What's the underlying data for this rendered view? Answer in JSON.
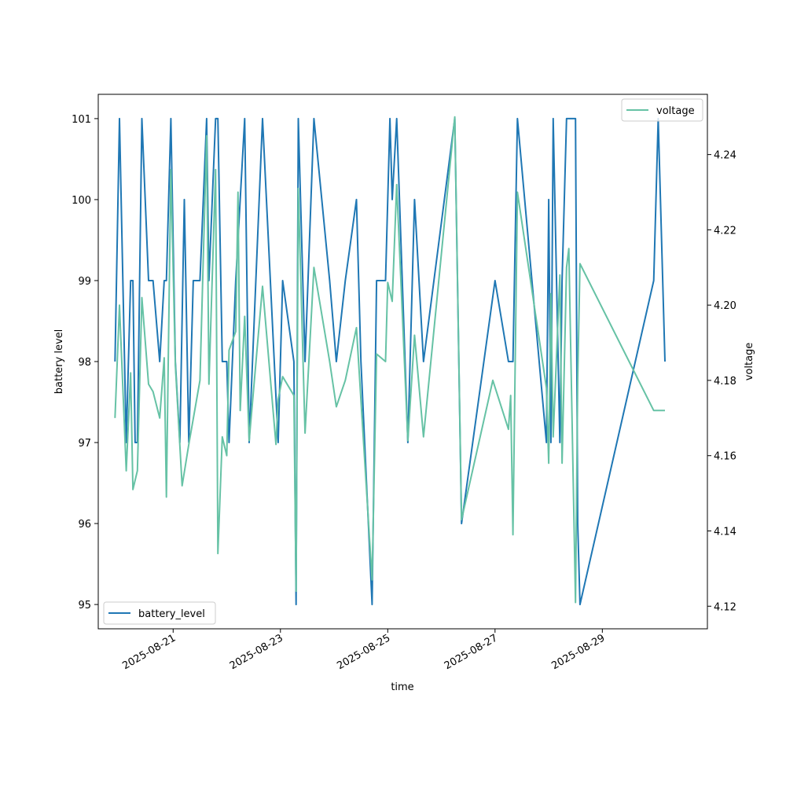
{
  "chart_data": {
    "type": "line",
    "xlabel": "time",
    "ylabel_left": "battery level",
    "ylabel_right": "voltage",
    "x_ticks": [
      "2025-08-21",
      "2025-08-23",
      "2025-08-25",
      "2025-08-27",
      "2025-08-29"
    ],
    "x_range": [
      "2025-08-19T14:30",
      "2025-08-30T23:00"
    ],
    "y_left_ticks": [
      95,
      96,
      97,
      98,
      99,
      100,
      101
    ],
    "y_left_range": [
      94.7,
      101.3
    ],
    "y_right_ticks": [
      4.12,
      4.14,
      4.16,
      4.18,
      4.2,
      4.22,
      4.24
    ],
    "y_right_range": [
      4.114,
      4.256
    ],
    "grid": false,
    "series": [
      {
        "name": "battery_level",
        "axis": "left",
        "color": "#1f77b4",
        "legend_position": "lower-left",
        "x": [
          "2025-08-19T22:00",
          "2025-08-20T00:00",
          "2025-08-20T03:00",
          "2025-08-20T05:00",
          "2025-08-20T06:00",
          "2025-08-20T07:00",
          "2025-08-20T08:00",
          "2025-08-20T10:00",
          "2025-08-20T13:00",
          "2025-08-20T15:00",
          "2025-08-20T18:00",
          "2025-08-20T20:00",
          "2025-08-20T21:00",
          "2025-08-20T23:00",
          "2025-08-21T01:00",
          "2025-08-21T03:00",
          "2025-08-21T05:00",
          "2025-08-21T07:00",
          "2025-08-21T09:00",
          "2025-08-21T12:00",
          "2025-08-21T15:00",
          "2025-08-21T16:00",
          "2025-08-21T19:00",
          "2025-08-21T20:00",
          "2025-08-21T22:00",
          "2025-08-22T00:00",
          "2025-08-22T01:00",
          "2025-08-22T04:00",
          "2025-08-22T06:00",
          "2025-08-22T08:00",
          "2025-08-22T10:00",
          "2025-08-22T16:00",
          "2025-08-22T23:00",
          "2025-08-23T01:00",
          "2025-08-23T06:00",
          "2025-08-23T07:00",
          "2025-08-23T08:00",
          "2025-08-23T11:00",
          "2025-08-23T15:00",
          "2025-08-23T22:00",
          "2025-08-24T01:00",
          "2025-08-24T05:00",
          "2025-08-24T10:00",
          "2025-08-24T12:00",
          "2025-08-24T17:00",
          "2025-08-24T19:00",
          "2025-08-24T23:00",
          "2025-08-25T01:00",
          "2025-08-25T02:00",
          "2025-08-25T04:00",
          "2025-08-25T09:00",
          "2025-08-25T12:00",
          "2025-08-25T16:00",
          "2025-08-26T06:00",
          "2025-08-26T09:00",
          "2025-08-27T00:00",
          "2025-08-27T06:00",
          "2025-08-27T07:00",
          "2025-08-27T08:00",
          "2025-08-27T10:00",
          "2025-08-27T23:00",
          "2025-08-28T00:00",
          "2025-08-28T01:00",
          "2025-08-28T02:00",
          "2025-08-28T05:00",
          "2025-08-28T06:00",
          "2025-08-28T08:00",
          "2025-08-28T09:00",
          "2025-08-28T12:00",
          "2025-08-28T13:00",
          "2025-08-28T14:00",
          "2025-08-29T23:00",
          "2025-08-30T01:00",
          "2025-08-30T04:00"
        ],
        "y": [
          98,
          101,
          97,
          99,
          99,
          97,
          97,
          101,
          99,
          99,
          98,
          99,
          99,
          101,
          98,
          97,
          100,
          97,
          99,
          99,
          101,
          99,
          101,
          101,
          98,
          98,
          97,
          99,
          100,
          101,
          97,
          101,
          97,
          99,
          98,
          95,
          101,
          98,
          101,
          99,
          98,
          99,
          100,
          98,
          95,
          99,
          99,
          101,
          100,
          101,
          97,
          100,
          98,
          101,
          96,
          99,
          98,
          98,
          98,
          101,
          97,
          100,
          97,
          101,
          97,
          99,
          101,
          101,
          101,
          96,
          95,
          99,
          101,
          98
        ]
      },
      {
        "name": "voltage",
        "axis": "right",
        "color": "#66c2a5",
        "legend_position": "upper-right",
        "x": [
          "2025-08-19T22:00",
          "2025-08-20T00:00",
          "2025-08-20T03:00",
          "2025-08-20T05:00",
          "2025-08-20T06:00",
          "2025-08-20T08:00",
          "2025-08-20T10:00",
          "2025-08-20T13:00",
          "2025-08-20T15:00",
          "2025-08-20T18:00",
          "2025-08-20T20:00",
          "2025-08-20T21:00",
          "2025-08-20T23:00",
          "2025-08-21T01:00",
          "2025-08-21T04:00",
          "2025-08-21T07:00",
          "2025-08-21T12:00",
          "2025-08-21T15:00",
          "2025-08-21T16:00",
          "2025-08-21T19:00",
          "2025-08-21T20:00",
          "2025-08-21T22:00",
          "2025-08-22T00:00",
          "2025-08-22T01:00",
          "2025-08-22T04:00",
          "2025-08-22T05:00",
          "2025-08-22T06:00",
          "2025-08-22T08:00",
          "2025-08-22T10:00",
          "2025-08-22T16:00",
          "2025-08-22T22:00",
          "2025-08-22T23:00",
          "2025-08-23T01:00",
          "2025-08-23T06:00",
          "2025-08-23T07:00",
          "2025-08-23T08:00",
          "2025-08-23T11:00",
          "2025-08-23T15:00",
          "2025-08-23T22:00",
          "2025-08-24T01:00",
          "2025-08-24T05:00",
          "2025-08-24T10:00",
          "2025-08-24T17:00",
          "2025-08-24T19:00",
          "2025-08-24T23:00",
          "2025-08-25T00:00",
          "2025-08-25T02:00",
          "2025-08-25T04:00",
          "2025-08-25T09:00",
          "2025-08-25T12:00",
          "2025-08-25T16:00",
          "2025-08-26T06:00",
          "2025-08-26T09:00",
          "2025-08-26T23:00",
          "2025-08-27T06:00",
          "2025-08-27T07:00",
          "2025-08-27T08:00",
          "2025-08-27T10:00",
          "2025-08-27T23:00",
          "2025-08-28T00:00",
          "2025-08-28T01:00",
          "2025-08-28T02:00",
          "2025-08-28T05:00",
          "2025-08-28T06:00",
          "2025-08-28T08:00",
          "2025-08-28T09:00",
          "2025-08-28T12:00",
          "2025-08-28T13:00",
          "2025-08-28T14:00",
          "2025-08-29T23:00",
          "2025-08-30T04:00"
        ],
        "y": [
          4.17,
          4.2,
          4.156,
          4.182,
          4.151,
          4.156,
          4.202,
          4.179,
          4.177,
          4.17,
          4.186,
          4.149,
          4.236,
          4.184,
          4.152,
          4.163,
          4.18,
          4.245,
          4.179,
          4.236,
          4.134,
          4.165,
          4.16,
          4.188,
          4.193,
          4.23,
          4.172,
          4.197,
          4.164,
          4.205,
          4.163,
          4.175,
          4.181,
          4.176,
          4.124,
          4.231,
          4.166,
          4.21,
          4.185,
          4.173,
          4.18,
          4.194,
          4.127,
          4.187,
          4.185,
          4.206,
          4.201,
          4.232,
          4.164,
          4.192,
          4.165,
          4.25,
          4.143,
          4.18,
          4.167,
          4.176,
          4.139,
          4.23,
          4.178,
          4.158,
          4.203,
          4.165,
          4.208,
          4.158,
          4.21,
          4.215,
          4.121,
          4.18,
          4.211,
          4.172,
          4.172
        ]
      }
    ]
  }
}
